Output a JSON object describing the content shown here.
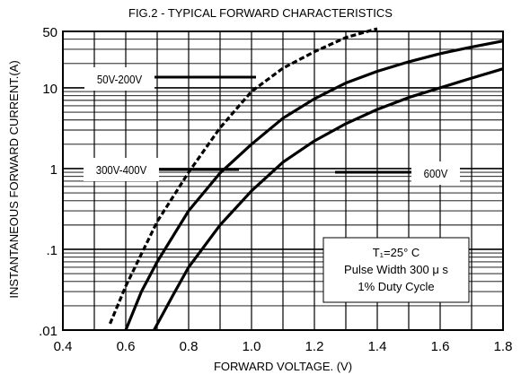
{
  "chart_data": {
    "type": "line",
    "title": "FIG.2 - TYPICAL FORWARD CHARACTERISTICS",
    "xlabel": "FORWARD VOLTAGE. (V)",
    "ylabel": "INSTANTANEOUS FORWARD CURRENT.(A)",
    "xlim": [
      0.4,
      1.8
    ],
    "ylim": [
      0.01,
      50
    ],
    "yscale": "log",
    "grid": true,
    "x_ticks": [
      {
        "value": 0.4,
        "label": "0.4"
      },
      {
        "value": 0.6,
        "label": "0.6"
      },
      {
        "value": 0.8,
        "label": "0.8"
      },
      {
        "value": 1.0,
        "label": "1.0"
      },
      {
        "value": 1.2,
        "label": "1.2"
      },
      {
        "value": 1.4,
        "label": "1.4"
      },
      {
        "value": 1.6,
        "label": "1.6"
      },
      {
        "value": 1.8,
        "label": "1.8"
      }
    ],
    "y_ticks": [
      {
        "value": 0.01,
        "label": ".01"
      },
      {
        "value": 0.1,
        "label": ".1"
      },
      {
        "value": 1,
        "label": "1"
      },
      {
        "value": 10,
        "label": "10"
      },
      {
        "value": 50,
        "label": "50"
      }
    ],
    "series": [
      {
        "name": "50V-200V",
        "style": "dashed",
        "x": [
          0.55,
          0.6,
          0.7,
          0.8,
          0.9,
          1.0,
          1.1,
          1.2,
          1.3,
          1.4
        ],
        "y": [
          0.012,
          0.035,
          0.22,
          0.9,
          3.2,
          9.0,
          17.5,
          28,
          42,
          55
        ]
      },
      {
        "name": "300V-400V",
        "style": "solid",
        "x": [
          0.6,
          0.65,
          0.7,
          0.8,
          0.9,
          1.0,
          1.1,
          1.2,
          1.3,
          1.4,
          1.5,
          1.6,
          1.7,
          1.8
        ],
        "y": [
          0.01,
          0.03,
          0.07,
          0.3,
          0.88,
          2.0,
          4.2,
          7.3,
          11.5,
          16.0,
          21.0,
          26.5,
          32,
          38
        ]
      },
      {
        "name": "600V",
        "style": "solid",
        "x": [
          0.69,
          0.75,
          0.8,
          0.9,
          1.0,
          1.1,
          1.2,
          1.3,
          1.4,
          1.5,
          1.6,
          1.7,
          1.8
        ],
        "y": [
          0.01,
          0.027,
          0.06,
          0.2,
          0.53,
          1.2,
          2.2,
          3.6,
          5.4,
          7.6,
          10.0,
          13.2,
          17.2
        ]
      }
    ],
    "annotations": [
      "T₁=25° C",
      "Pulse Width 300 μ s",
      "1% Duty Cycle"
    ]
  }
}
